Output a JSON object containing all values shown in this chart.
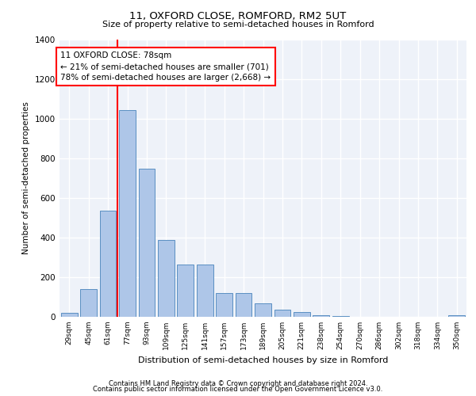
{
  "title1": "11, OXFORD CLOSE, ROMFORD, RM2 5UT",
  "title2": "Size of property relative to semi-detached houses in Romford",
  "xlabel": "Distribution of semi-detached houses by size in Romford",
  "ylabel": "Number of semi-detached properties",
  "categories": [
    "29sqm",
    "45sqm",
    "61sqm",
    "77sqm",
    "93sqm",
    "109sqm",
    "125sqm",
    "141sqm",
    "157sqm",
    "173sqm",
    "189sqm",
    "205sqm",
    "221sqm",
    "238sqm",
    "254sqm",
    "270sqm",
    "286sqm",
    "302sqm",
    "318sqm",
    "334sqm",
    "350sqm"
  ],
  "values": [
    22,
    140,
    535,
    1045,
    750,
    390,
    265,
    265,
    120,
    120,
    70,
    35,
    25,
    10,
    5,
    0,
    0,
    0,
    0,
    0,
    10
  ],
  "bar_color": "#aec6e8",
  "bar_edge_color": "#5a8fc2",
  "annotation_line1": "11 OXFORD CLOSE: 78sqm",
  "annotation_line2": "← 21% of semi-detached houses are smaller (701)",
  "annotation_line3": "78% of semi-detached houses are larger (2,668) →",
  "vline_bin_index": 3,
  "ymax": 1400,
  "footer1": "Contains HM Land Registry data © Crown copyright and database right 2024.",
  "footer2": "Contains public sector information licensed under the Open Government Licence v3.0."
}
